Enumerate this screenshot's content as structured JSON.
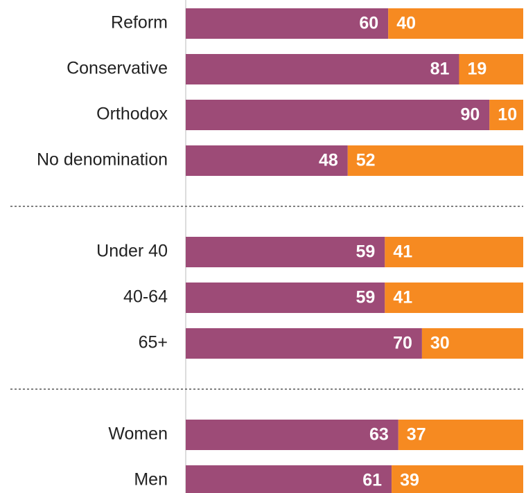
{
  "chart_data": [
    {
      "type": "stacked-bar",
      "orientation": "horizontal",
      "categories": [
        "Reform",
        "Conservative",
        "Orthodox",
        "No denomination"
      ],
      "series": [
        {
          "color": "#9d4b77",
          "values": [
            60,
            81,
            90,
            48
          ]
        },
        {
          "color": "#f68a21",
          "values": [
            40,
            19,
            10,
            52
          ]
        }
      ],
      "xlim": [
        0,
        100
      ]
    },
    {
      "type": "stacked-bar",
      "orientation": "horizontal",
      "categories": [
        "Under 40",
        "40-64",
        "65+"
      ],
      "series": [
        {
          "color": "#9d4b77",
          "values": [
            59,
            59,
            70
          ]
        },
        {
          "color": "#f68a21",
          "values": [
            41,
            41,
            30
          ]
        }
      ],
      "xlim": [
        0,
        100
      ]
    },
    {
      "type": "stacked-bar",
      "orientation": "horizontal",
      "categories": [
        "Women",
        "Men"
      ],
      "series": [
        {
          "color": "#9d4b77",
          "values": [
            63,
            61
          ]
        },
        {
          "color": "#f68a21",
          "values": [
            37,
            39
          ]
        }
      ],
      "xlim": [
        0,
        100
      ]
    }
  ]
}
